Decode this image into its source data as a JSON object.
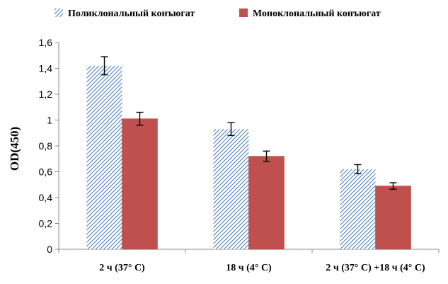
{
  "chart_data": {
    "type": "bar",
    "categories": [
      "2 ч (37° С)",
      "18 ч (4° С)",
      "2 ч (37° С) +18 ч (4° С)"
    ],
    "series": [
      {
        "name": "Поликлональный конъюгат",
        "values": [
          1.42,
          0.93,
          0.62
        ],
        "errors": [
          0.07,
          0.05,
          0.035
        ],
        "pattern": "diagonal-hatch",
        "color": "#4f81bd"
      },
      {
        "name": "Моноклональный конъюгат",
        "values": [
          1.01,
          0.72,
          0.49
        ],
        "errors": [
          0.05,
          0.04,
          0.025
        ],
        "pattern": "solid",
        "color": "#c0504d"
      }
    ],
    "ylabel": "OD(450)",
    "xlabel": "",
    "ylim": [
      0,
      1.6
    ],
    "yticks": [
      "0",
      "0,2",
      "0,4",
      "0,6",
      "0,8",
      "1",
      "1,2",
      "1,4",
      "1,6"
    ],
    "grid": false,
    "legend": "top"
  }
}
